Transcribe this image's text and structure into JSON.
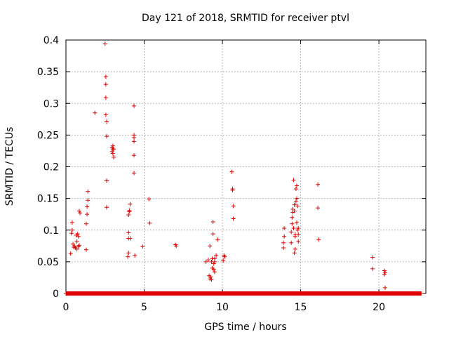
{
  "chart_data": {
    "type": "scatter",
    "title": "Day 121 of 2018, SRMTID for receiver ptvl",
    "xlabel": "GPS time / hours",
    "ylabel": "SRMTID / TECUs",
    "xlim": [
      0,
      23
    ],
    "ylim": [
      0,
      0.4
    ],
    "x_ticks": [
      0,
      5,
      10,
      15,
      20
    ],
    "x_tick_labels": [
      "0",
      "5",
      "10",
      "15",
      "20"
    ],
    "y_ticks": [
      0,
      0.05,
      0.1,
      0.15,
      0.2,
      0.25,
      0.3,
      0.35,
      0.4
    ],
    "y_tick_labels": [
      "0",
      "0.05",
      "0.1",
      "0.15",
      "0.2",
      "0.25",
      "0.3",
      "0.35",
      "0.4"
    ],
    "grid": true,
    "marker": "+",
    "color": "#e00000",
    "baseline_zero_range": [
      0.0,
      22.7
    ],
    "series": [
      {
        "name": "SRMTID",
        "points": [
          [
            0.3,
            0.063
          ],
          [
            0.35,
            0.095
          ],
          [
            0.4,
            0.1
          ],
          [
            0.4,
            0.112
          ],
          [
            0.45,
            0.078
          ],
          [
            0.5,
            0.073
          ],
          [
            0.55,
            0.075
          ],
          [
            0.6,
            0.072
          ],
          [
            0.65,
            0.092
          ],
          [
            0.7,
            0.07
          ],
          [
            0.7,
            0.082
          ],
          [
            0.75,
            0.094
          ],
          [
            0.8,
            0.074
          ],
          [
            0.8,
            0.09
          ],
          [
            0.85,
            0.076
          ],
          [
            0.85,
            0.13
          ],
          [
            0.9,
            0.127
          ],
          [
            1.3,
            0.069
          ],
          [
            1.3,
            0.11
          ],
          [
            1.35,
            0.125
          ],
          [
            1.35,
            0.137
          ],
          [
            1.4,
            0.147
          ],
          [
            1.4,
            0.161
          ],
          [
            1.85,
            0.285
          ],
          [
            2.5,
            0.394
          ],
          [
            2.55,
            0.342
          ],
          [
            2.55,
            0.33
          ],
          [
            2.55,
            0.309
          ],
          [
            2.55,
            0.282
          ],
          [
            2.6,
            0.271
          ],
          [
            2.6,
            0.248
          ],
          [
            2.6,
            0.178
          ],
          [
            2.6,
            0.136
          ],
          [
            2.95,
            0.23
          ],
          [
            2.95,
            0.224
          ],
          [
            3.0,
            0.233
          ],
          [
            3.0,
            0.228
          ],
          [
            3.0,
            0.221
          ],
          [
            3.05,
            0.215
          ],
          [
            3.05,
            0.228
          ],
          [
            3.95,
            0.058
          ],
          [
            4.0,
            0.064
          ],
          [
            4.0,
            0.087
          ],
          [
            4.0,
            0.096
          ],
          [
            4.0,
            0.124
          ],
          [
            4.05,
            0.131
          ],
          [
            4.05,
            0.129
          ],
          [
            4.1,
            0.141
          ],
          [
            4.1,
            0.087
          ],
          [
            4.35,
            0.296
          ],
          [
            4.35,
            0.25
          ],
          [
            4.35,
            0.246
          ],
          [
            4.35,
            0.24
          ],
          [
            4.35,
            0.218
          ],
          [
            4.35,
            0.19
          ],
          [
            4.4,
            0.06
          ],
          [
            4.9,
            0.074
          ],
          [
            5.3,
            0.149
          ],
          [
            5.35,
            0.111
          ],
          [
            7.0,
            0.077
          ],
          [
            7.05,
            0.075
          ],
          [
            8.95,
            0.05
          ],
          [
            9.1,
            0.053
          ],
          [
            9.15,
            0.028
          ],
          [
            9.2,
            0.075
          ],
          [
            9.2,
            0.023
          ],
          [
            9.25,
            0.026
          ],
          [
            9.3,
            0.022
          ],
          [
            9.3,
            0.05
          ],
          [
            9.35,
            0.055
          ],
          [
            9.35,
            0.04
          ],
          [
            9.4,
            0.113
          ],
          [
            9.4,
            0.094
          ],
          [
            9.45,
            0.047
          ],
          [
            9.45,
            0.038
          ],
          [
            9.5,
            0.05
          ],
          [
            9.5,
            0.055
          ],
          [
            9.5,
            0.034
          ],
          [
            9.6,
            0.06
          ],
          [
            9.7,
            0.085
          ],
          [
            10.05,
            0.052
          ],
          [
            10.1,
            0.06
          ],
          [
            10.15,
            0.058
          ],
          [
            10.6,
            0.192
          ],
          [
            10.65,
            0.165
          ],
          [
            10.65,
            0.163
          ],
          [
            10.7,
            0.138
          ],
          [
            10.7,
            0.118
          ],
          [
            13.9,
            0.072
          ],
          [
            13.9,
            0.08
          ],
          [
            13.95,
            0.09
          ],
          [
            13.95,
            0.103
          ],
          [
            14.4,
            0.08
          ],
          [
            14.4,
            0.097
          ],
          [
            14.45,
            0.11
          ],
          [
            14.45,
            0.12
          ],
          [
            14.5,
            0.128
          ],
          [
            14.5,
            0.133
          ],
          [
            14.55,
            0.179
          ],
          [
            14.55,
            0.103
          ],
          [
            14.6,
            0.13
          ],
          [
            14.6,
            0.14
          ],
          [
            14.6,
            0.064
          ],
          [
            14.65,
            0.07
          ],
          [
            14.65,
            0.09
          ],
          [
            14.65,
            0.093
          ],
          [
            14.7,
            0.145
          ],
          [
            14.7,
            0.165
          ],
          [
            14.75,
            0.17
          ],
          [
            14.75,
            0.15
          ],
          [
            14.75,
            0.112
          ],
          [
            14.8,
            0.138
          ],
          [
            14.8,
            0.1
          ],
          [
            14.85,
            0.093
          ],
          [
            14.85,
            0.103
          ],
          [
            14.85,
            0.082
          ],
          [
            16.1,
            0.172
          ],
          [
            16.1,
            0.135
          ],
          [
            16.15,
            0.085
          ],
          [
            19.6,
            0.057
          ],
          [
            19.6,
            0.039
          ],
          [
            20.35,
            0.036
          ],
          [
            20.35,
            0.03
          ],
          [
            20.4,
            0.033
          ],
          [
            20.4,
            0.009
          ]
        ]
      }
    ]
  }
}
